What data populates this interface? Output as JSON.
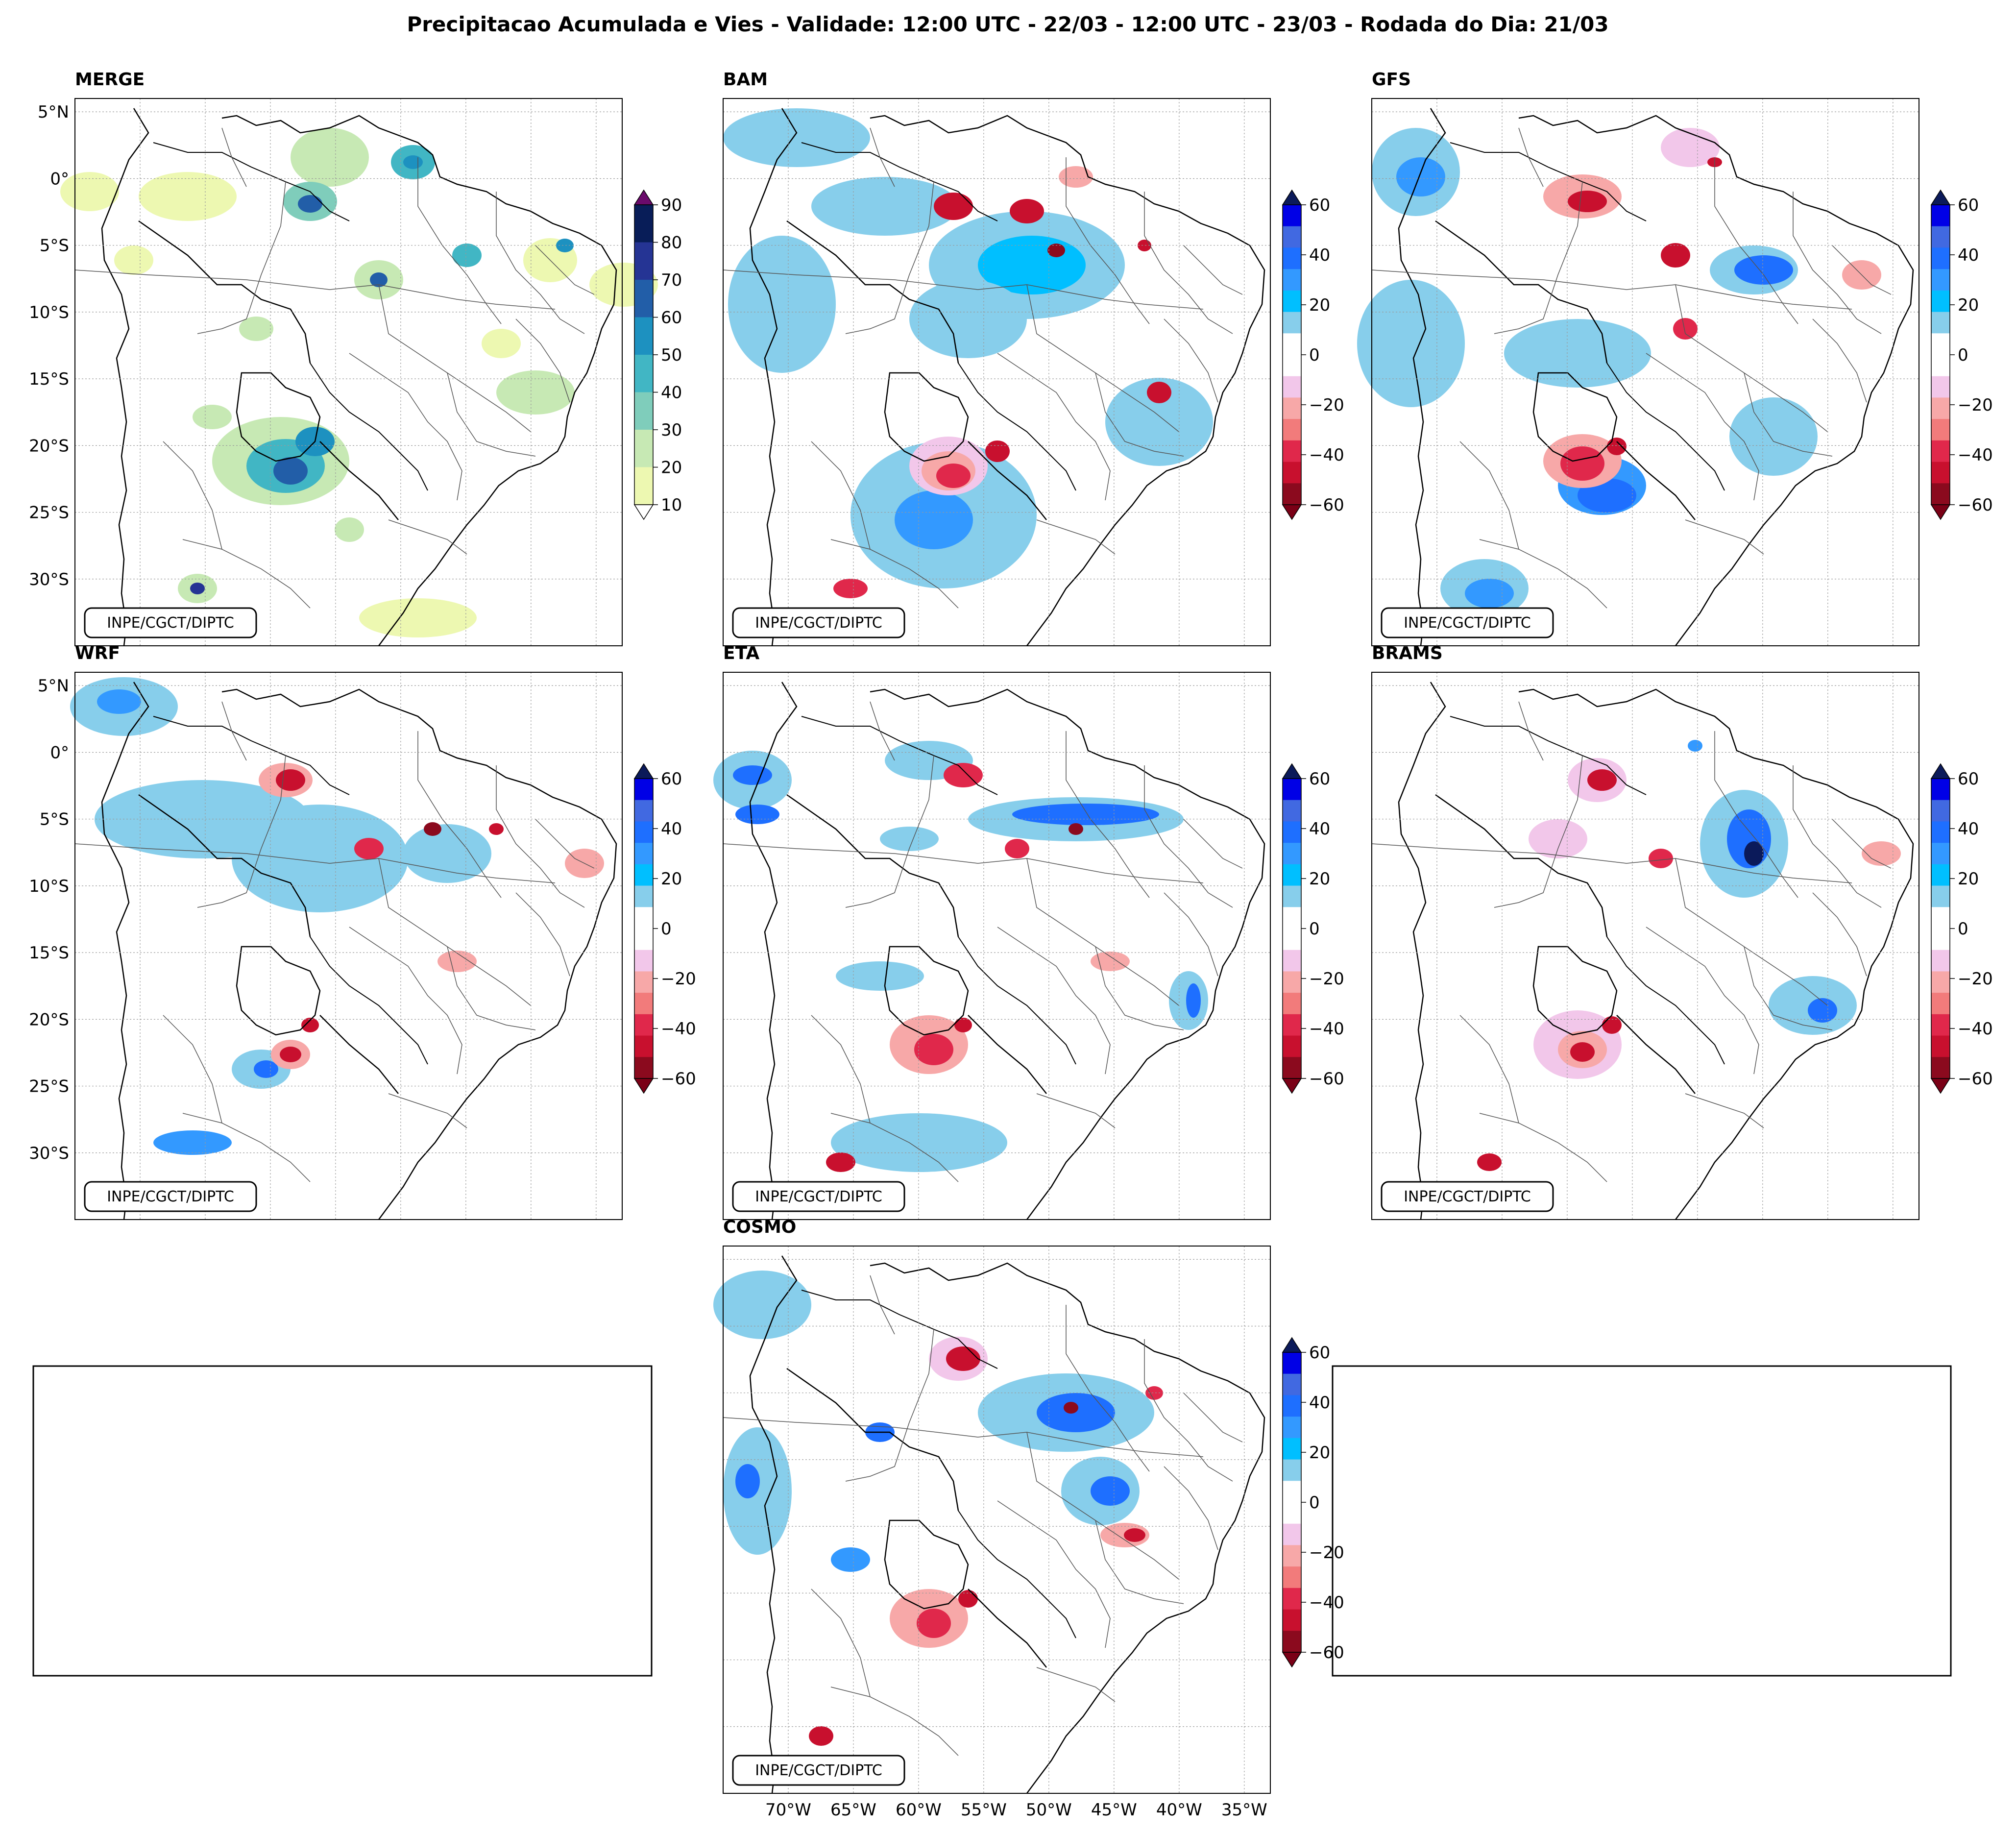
{
  "figure": {
    "title": "Precipitacao Acumulada e Vies - Validade: 12:00 UTC - 22/03 - 12:00 UTC - 23/03 - Rodada do Dia: 21/03",
    "credit": "INPE/CGCT/DIPTC"
  },
  "axes": {
    "lat_ticks": [
      "5°N",
      "0°",
      "5°S",
      "10°S",
      "15°S",
      "20°S",
      "25°S",
      "30°S"
    ],
    "lon_ticks": [
      "70°W",
      "65°W",
      "60°W",
      "55°W",
      "50°W",
      "45°W",
      "40°W",
      "35°W"
    ],
    "lon_range": [
      -75,
      -33
    ],
    "lat_range": [
      -35,
      6
    ]
  },
  "colorbars": {
    "precip": {
      "ticks": [
        "90",
        "80",
        "70",
        "60",
        "50",
        "40",
        "30",
        "20",
        "10"
      ],
      "colors": [
        "#edf8b1",
        "#c7e9b4",
        "#7fcdbb",
        "#41b6c4",
        "#1d91c0",
        "#225ea8",
        "#253494",
        "#081d58"
      ],
      "over_color": "#6a0a6b",
      "under_color": "#ffffff"
    },
    "bias": {
      "ticks": [
        "60",
        "40",
        "20",
        "0",
        "−20",
        "−40",
        "−60"
      ],
      "colors": [
        "#8b0a1e",
        "#c8102e",
        "#e0284b",
        "#f27b7b",
        "#f7a8a8",
        "#f2c7ea",
        "#ffffff",
        "#ffffff",
        "#87ceeb",
        "#00bfff",
        "#3399ff",
        "#1e6fff",
        "#4169e1",
        "#0000e6"
      ],
      "over_color": "#0b1a5a",
      "under_color": "#7a0016"
    }
  },
  "panels": [
    {
      "id": "merge",
      "title": "MERGE",
      "kind": "precip"
    },
    {
      "id": "bam",
      "title": "BAM",
      "kind": "bias"
    },
    {
      "id": "gfs",
      "title": "GFS",
      "kind": "bias"
    },
    {
      "id": "wrf",
      "title": "WRF",
      "kind": "bias"
    },
    {
      "id": "eta",
      "title": "ETA",
      "kind": "bias"
    },
    {
      "id": "brams",
      "title": "BRAMS",
      "kind": "bias"
    },
    {
      "id": "cosmo",
      "title": "COSMO",
      "kind": "bias"
    }
  ]
}
